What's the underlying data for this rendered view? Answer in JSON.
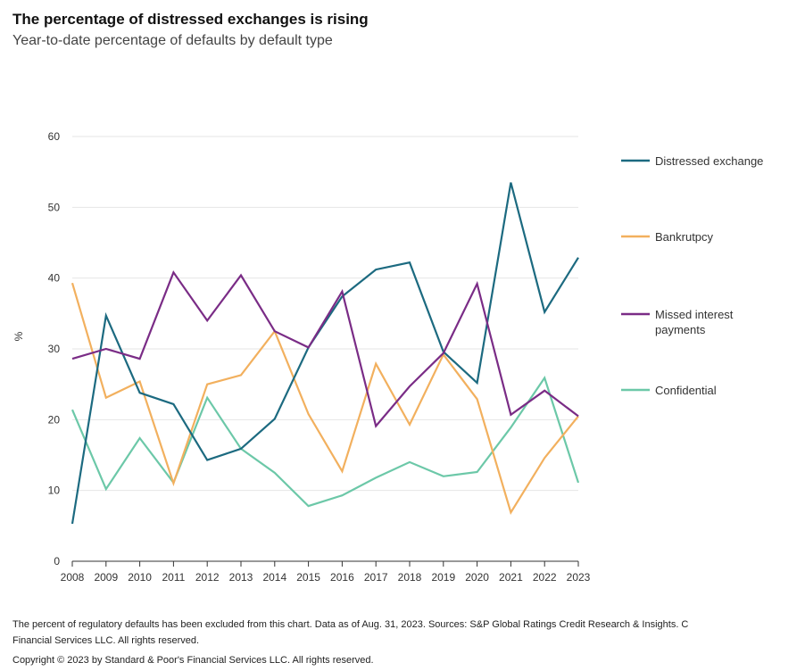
{
  "header": {
    "title": "The percentage of distressed exchanges is rising",
    "subtitle": "Year-to-date percentage of defaults by default type"
  },
  "footer": {
    "line1": "The percent of regulatory defaults has been excluded from this chart. Data as of Aug. 31, 2023. Sources: S&P Global Ratings Credit Research & Insights. C",
    "line2": "Financial Services LLC. All rights reserved.",
    "line3": "Copyright © 2023 by Standard & Poor's Financial Services LLC. All rights reserved."
  },
  "chart_data": {
    "type": "line",
    "title": "The percentage of distressed exchanges is rising",
    "subtitle": "Year-to-date percentage of defaults by default type",
    "xlabel": "",
    "ylabel": "%",
    "ylim": [
      0,
      60
    ],
    "yticks": [
      0,
      10,
      20,
      30,
      40,
      50,
      60
    ],
    "grid": true,
    "legend_position": "right",
    "categories": [
      "2008",
      "2009",
      "2010",
      "2011",
      "2012",
      "2013",
      "2014",
      "2015",
      "2016",
      "2017",
      "2018",
      "2019",
      "2020",
      "2021",
      "2022",
      "2023"
    ],
    "series": [
      {
        "name": "Distressed exchange",
        "color": "#1c6a80",
        "values": [
          5.3,
          34.7,
          23.8,
          22.2,
          14.3,
          15.9,
          20.1,
          30.2,
          37.4,
          41.2,
          42.2,
          29.6,
          25.2,
          53.5,
          35.2,
          42.9
        ]
      },
      {
        "name": "Bankrutpcy",
        "color": "#f2b05e",
        "values": [
          39.3,
          23.1,
          25.4,
          11.0,
          25.0,
          26.3,
          32.5,
          20.8,
          12.7,
          27.9,
          19.3,
          29.2,
          22.9,
          6.9,
          14.6,
          20.5
        ]
      },
      {
        "name": "Missed interest payments",
        "legend_lines": [
          "Missed interest",
          "payments"
        ],
        "color": "#7a2c86",
        "values": [
          28.6,
          30.0,
          28.6,
          40.8,
          34.0,
          40.4,
          32.5,
          30.2,
          38.1,
          19.1,
          24.7,
          29.4,
          39.2,
          20.7,
          24.1,
          20.5
        ]
      },
      {
        "name": "Confidential",
        "color": "#6cc8a8",
        "values": [
          21.4,
          10.2,
          17.4,
          11.1,
          23.1,
          15.9,
          12.5,
          7.8,
          9.3,
          11.8,
          14.0,
          12.0,
          12.6,
          18.9,
          25.9,
          11.1
        ]
      }
    ]
  }
}
